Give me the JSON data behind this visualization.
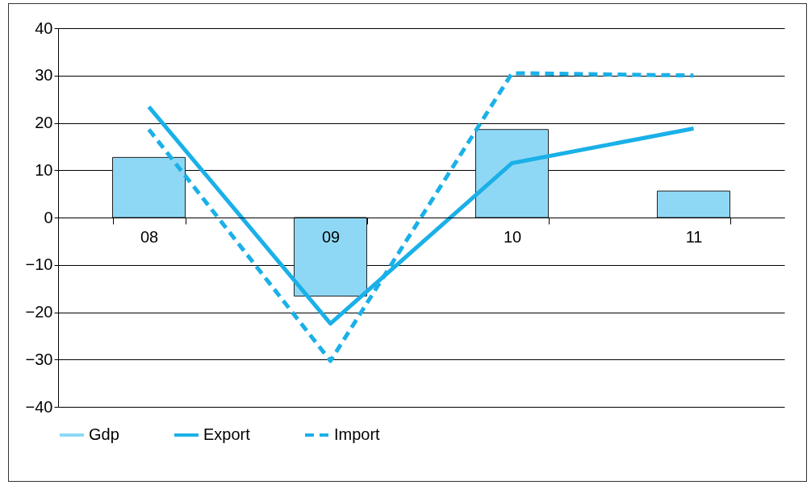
{
  "chart_data": {
    "type": "bar",
    "categories": [
      "08",
      "09",
      "10",
      "11"
    ],
    "series": [
      {
        "name": "Gdp",
        "color": "#8fd8f5",
        "values": [
          12.7,
          -16.6,
          18.6,
          5.6
        ]
      },
      {
        "name": "Export",
        "type": "line",
        "color": "#1ab0e8",
        "line_style": "solid",
        "values": [
          23.4,
          -22.4,
          11.5,
          18.8
        ]
      },
      {
        "name": "Import",
        "type": "line",
        "color": "#1ab0e8",
        "line_style": "dashed",
        "values": [
          18.6,
          -30.3,
          30.5,
          30
        ]
      }
    ],
    "ylim": [
      -40,
      40
    ],
    "yticks": [
      -40,
      -30,
      -20,
      -10,
      0,
      10,
      20,
      30,
      40
    ],
    "grid": "y",
    "legend": "bottom"
  }
}
